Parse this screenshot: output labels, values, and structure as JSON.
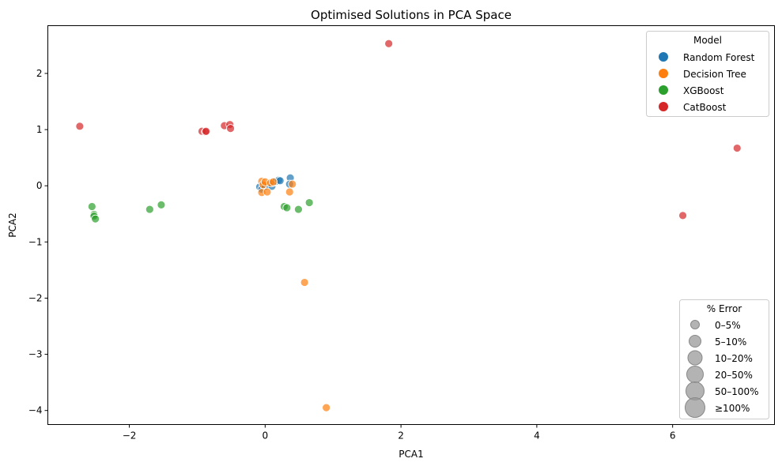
{
  "chart_data": {
    "type": "scatter",
    "title": "Optimised Solutions in PCA Space",
    "xlabel": "PCA1",
    "ylabel": "PCA2",
    "xlim": [
      -3.2,
      7.5
    ],
    "ylim": [
      -4.25,
      2.85
    ],
    "xticks": [
      -2,
      0,
      2,
      4,
      6
    ],
    "yticks": [
      -4,
      -3,
      -2,
      -1,
      0,
      1,
      2
    ],
    "xtick_labels": [
      "−2",
      "0",
      "2",
      "4",
      "6"
    ],
    "ytick_labels": [
      "−4",
      "−3",
      "−2",
      "−1",
      "0",
      "1",
      "2"
    ],
    "grid": false,
    "legend_model": {
      "title": "Model",
      "placement": "top-right",
      "entries": [
        {
          "label": "Random Forest",
          "color": "#1f77b4"
        },
        {
          "label": "Decision Tree",
          "color": "#ff7f0e"
        },
        {
          "label": "XGBoost",
          "color": "#2ca02c"
        },
        {
          "label": "CatBoost",
          "color": "#d62728"
        }
      ]
    },
    "legend_error": {
      "title": "% Error",
      "placement": "bottom-right",
      "entries": [
        {
          "label": "0–5%",
          "level": 1
        },
        {
          "label": "5–10%",
          "level": 2
        },
        {
          "label": "10–20%",
          "level": 3
        },
        {
          "label": "20–50%",
          "level": 4
        },
        {
          "label": "50–100%",
          "level": 5
        },
        {
          "label": "≥100%",
          "level": 6
        }
      ]
    },
    "series": [
      {
        "name": "Random Forest",
        "color": "#1f77b4",
        "points": [
          [
            -0.08,
            -0.02
          ],
          [
            -0.05,
            -0.06
          ],
          [
            0.0,
            -0.01
          ],
          [
            0.05,
            0.02
          ],
          [
            0.1,
            -0.01
          ],
          [
            0.12,
            0.06
          ],
          [
            0.16,
            0.08
          ],
          [
            0.2,
            0.1
          ],
          [
            0.22,
            0.09
          ],
          [
            0.37,
            0.14
          ],
          [
            0.36,
            0.03
          ]
        ]
      },
      {
        "name": "Decision Tree",
        "color": "#ff7f0e",
        "points": [
          [
            -0.05,
            0.08
          ],
          [
            -0.05,
            -0.12
          ],
          [
            -0.03,
            0.02
          ],
          [
            0.0,
            0.07
          ],
          [
            0.03,
            -0.11
          ],
          [
            0.08,
            0.05
          ],
          [
            0.12,
            0.07
          ],
          [
            0.36,
            -0.11
          ],
          [
            0.4,
            0.03
          ],
          [
            0.58,
            -1.72
          ],
          [
            0.9,
            -3.95
          ]
        ]
      },
      {
        "name": "XGBoost",
        "color": "#2ca02c",
        "points": [
          [
            -2.55,
            -0.37
          ],
          [
            -2.52,
            -0.51
          ],
          [
            -2.52,
            -0.54
          ],
          [
            -2.5,
            -0.59
          ],
          [
            -1.7,
            -0.42
          ],
          [
            -1.53,
            -0.34
          ],
          [
            0.28,
            -0.37
          ],
          [
            0.32,
            -0.39
          ],
          [
            0.49,
            -0.42
          ],
          [
            0.65,
            -0.3
          ]
        ]
      },
      {
        "name": "CatBoost",
        "color": "#d62728",
        "points": [
          [
            -2.73,
            1.06
          ],
          [
            -0.93,
            0.97
          ],
          [
            -0.88,
            0.96
          ],
          [
            -0.87,
            0.97
          ],
          [
            -0.6,
            1.07
          ],
          [
            -0.52,
            1.09
          ],
          [
            -0.51,
            1.02
          ],
          [
            1.82,
            2.53
          ],
          [
            6.15,
            -0.53
          ],
          [
            6.95,
            0.67
          ]
        ]
      }
    ]
  }
}
